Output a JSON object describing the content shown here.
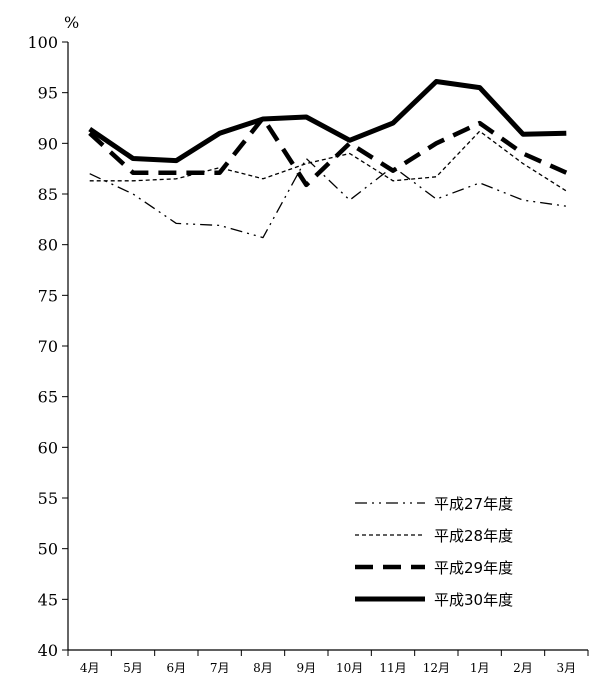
{
  "chart_data": {
    "type": "line",
    "title": "",
    "xlabel": "",
    "ylabel": "%",
    "ylim": [
      40,
      100
    ],
    "yticks": [
      "100",
      "95",
      "90",
      "85",
      "80",
      "75",
      "70",
      "65",
      "60",
      "55",
      "50",
      "45",
      "40"
    ],
    "categories": [
      "4月",
      "5月",
      "6月",
      "7月",
      "8月",
      "9月",
      "10月",
      "11月",
      "12月",
      "1月",
      "2月",
      "3月"
    ],
    "grid": false,
    "legend_position": "bottom-right",
    "series": [
      {
        "name": "平成27年度",
        "style": "dash-dot-dot",
        "color": "#000000",
        "values": [
          87.0,
          85.0,
          82.1,
          81.9,
          80.7,
          88.5,
          84.4,
          87.7,
          84.5,
          86.1,
          84.4,
          83.8
        ]
      },
      {
        "name": "平成28年度",
        "style": "short-dash",
        "color": "#000000",
        "values": [
          86.3,
          86.3,
          86.5,
          87.6,
          86.5,
          88.0,
          89.0,
          86.3,
          86.7,
          91.2,
          88.0,
          85.3
        ]
      },
      {
        "name": "平成29年度",
        "style": "long-dash",
        "color": "#000000",
        "values": [
          91.0,
          87.1,
          87.1,
          87.1,
          92.5,
          85.9,
          90.0,
          87.3,
          90.0,
          92.0,
          89.0,
          87.1
        ]
      },
      {
        "name": "平成30年度",
        "style": "solid-thick",
        "color": "#000000",
        "values": [
          91.4,
          88.5,
          88.3,
          91.0,
          92.4,
          92.6,
          90.3,
          92.0,
          96.1,
          95.5,
          90.9,
          91.0
        ]
      }
    ]
  }
}
